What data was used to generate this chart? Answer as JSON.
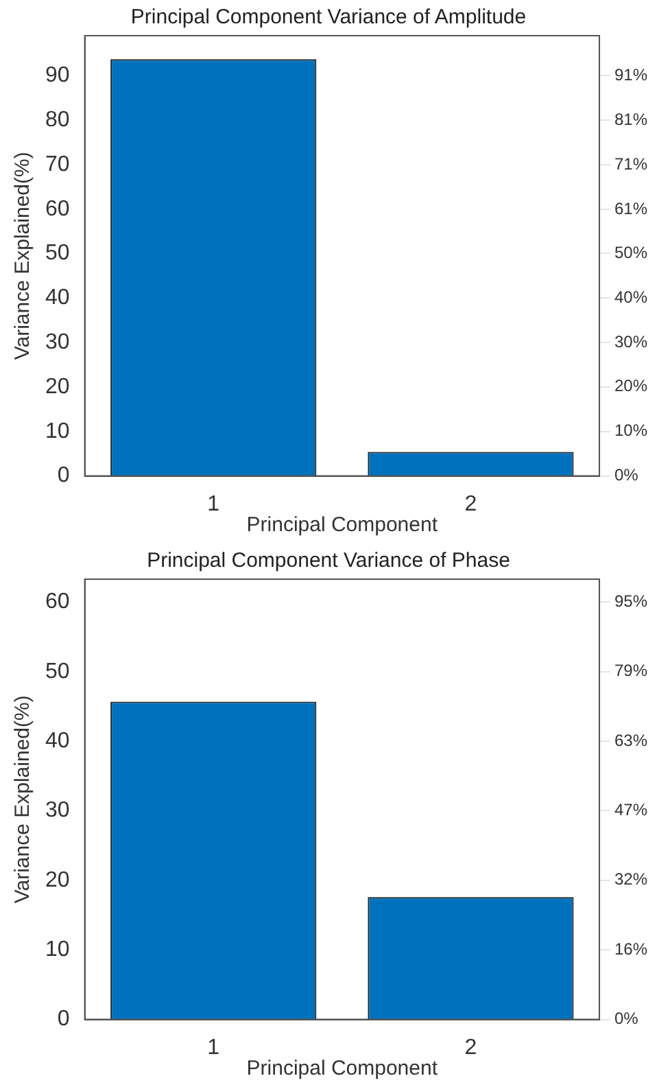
{
  "chart_data": [
    {
      "type": "bar",
      "title": "Principal Component Variance of Amplitude",
      "xlabel": "Principal Component",
      "ylabel": "Variance Explained(%)",
      "categories": [
        "1",
        "2"
      ],
      "values": [
        93.7,
        5.4
      ],
      "color": "#0072bd",
      "ylim": [
        0,
        99
      ],
      "yticks": [
        0,
        10,
        20,
        30,
        40,
        50,
        60,
        70,
        80,
        90
      ],
      "y2lim": [
        0,
        99.9
      ],
      "y2ticks": [
        {
          "value": 0,
          "label": "0%"
        },
        {
          "value": 10.1,
          "label": "10%"
        },
        {
          "value": 20.2,
          "label": "20%"
        },
        {
          "value": 30.3,
          "label": "30%"
        },
        {
          "value": 40.4,
          "label": "40%"
        },
        {
          "value": 50.5,
          "label": "50%"
        },
        {
          "value": 60.5,
          "label": "61%"
        },
        {
          "value": 70.6,
          "label": "71%"
        },
        {
          "value": 80.7,
          "label": "81%"
        },
        {
          "value": 90.8,
          "label": "91%"
        }
      ],
      "grid": false,
      "legend": false
    },
    {
      "type": "bar",
      "title": "Principal Component Variance of Phase",
      "xlabel": "Principal Component",
      "ylabel": "Variance Explained(%)",
      "categories": [
        "1",
        "2"
      ],
      "values": [
        45.7,
        17.6
      ],
      "color": "#0072bd",
      "ylim": [
        0,
        63.3
      ],
      "yticks": [
        0,
        10,
        20,
        30,
        40,
        50,
        60
      ],
      "y2lim": [
        0,
        100
      ],
      "y2ticks": [
        {
          "value": 0,
          "label": "0%"
        },
        {
          "value": 15.8,
          "label": "16%"
        },
        {
          "value": 31.6,
          "label": "32%"
        },
        {
          "value": 47.4,
          "label": "47%"
        },
        {
          "value": 63.2,
          "label": "63%"
        },
        {
          "value": 79,
          "label": "79%"
        },
        {
          "value": 94.8,
          "label": "95%"
        }
      ],
      "grid": false,
      "legend": false
    }
  ]
}
